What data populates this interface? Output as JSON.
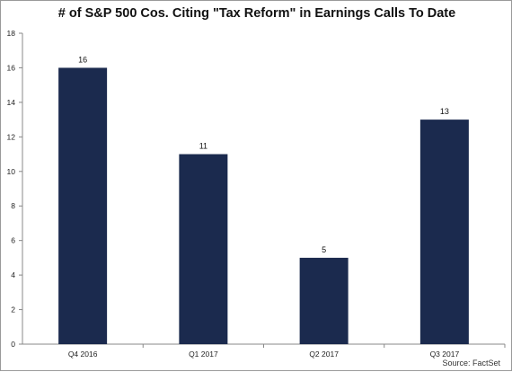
{
  "chart_data": {
    "type": "bar",
    "title": "# of S&P 500 Cos. Citing \"Tax Reform\" in Earnings Calls To Date",
    "categories": [
      "Q4 2016",
      "Q1 2017",
      "Q2 2017",
      "Q3 2017"
    ],
    "values": [
      16,
      11,
      5,
      13
    ],
    "data_labels": [
      "16",
      "11",
      "5",
      "13"
    ],
    "xlabel": "",
    "ylabel": "",
    "ylim": [
      0,
      18
    ],
    "yticks": [
      0,
      2,
      4,
      6,
      8,
      10,
      12,
      14,
      16,
      18
    ],
    "grid": false,
    "legend": "none",
    "bar_color": "#1b2a4e",
    "source": "Source: FactSet"
  }
}
